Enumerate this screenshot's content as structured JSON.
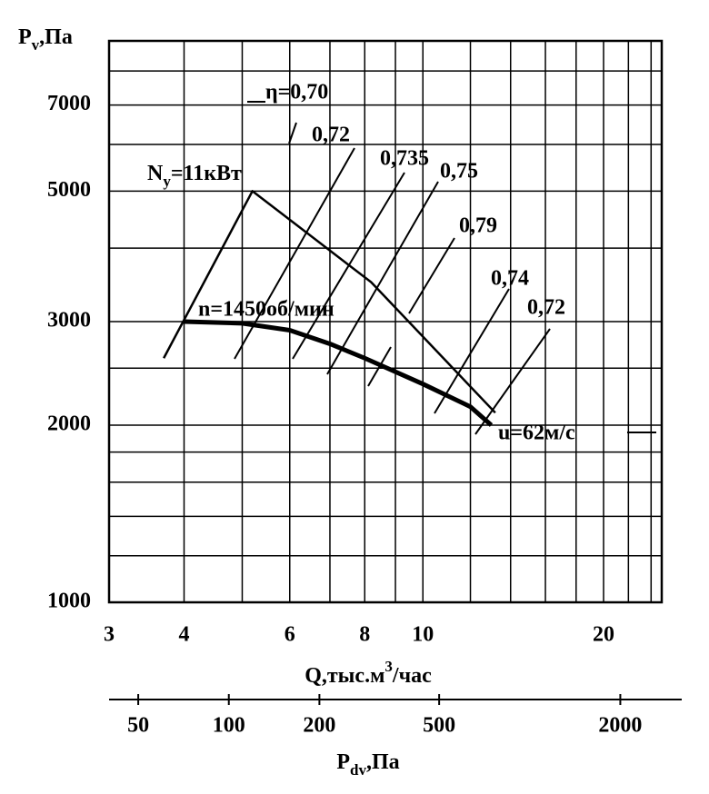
{
  "chart_data": {
    "type": "line",
    "ylabel": [
      "P",
      "v",
      ",Па"
    ],
    "xlabel": [
      "Q,тыс.м",
      "3",
      "/час"
    ],
    "x2label": [
      "P",
      "dv",
      ",Па"
    ],
    "xscale": "log",
    "yscale": "log",
    "x2scale": "log",
    "xlim": [
      3,
      25
    ],
    "xticks": [
      3,
      4,
      6,
      8,
      10,
      20
    ],
    "xgrid": [
      5,
      7,
      9,
      12,
      14,
      16,
      18,
      22,
      24
    ],
    "ylim": [
      1000,
      9000
    ],
    "yticks": [
      1000,
      2000,
      3000,
      5000,
      7000
    ],
    "ygrid": [
      1200,
      1400,
      1600,
      1800,
      2500,
      4000,
      6000,
      8000
    ],
    "x2lim": [
      40,
      3200
    ],
    "x2ticks": [
      50,
      100,
      200,
      500,
      2000
    ],
    "grid": true,
    "series": [
      {
        "color": "#000000",
        "x": [
          4,
          5,
          6,
          7,
          8,
          10,
          12,
          13
        ],
        "values": [
          3000,
          2980,
          2900,
          2750,
          2600,
          2350,
          2150,
          2000
        ]
      },
      {
        "color": "#000000",
        "x": [
          3.7,
          5.2,
          8.2,
          13.2
        ],
        "values": [
          2600,
          5000,
          3500,
          2100
        ]
      }
    ],
    "power_label": [
      "N",
      "y",
      "=11кВт"
    ],
    "annotations": [
      "η=0,70",
      "0,72",
      "0,735",
      "0,75",
      "0,79",
      "0,74",
      "0,72",
      "n=1450об/мин",
      "u=62м/с"
    ]
  }
}
